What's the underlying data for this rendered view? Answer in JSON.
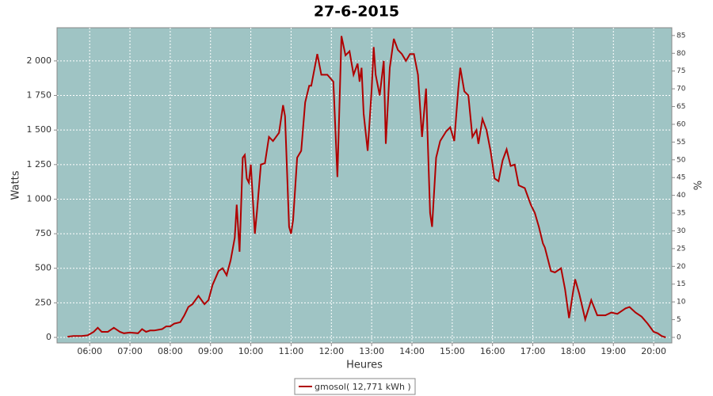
{
  "chart_data": {
    "type": "line",
    "title": "27-6-2015",
    "x_label": "Heures",
    "y_label": "Watts",
    "y2_label": "%",
    "xlim": [
      5.19,
      20.45
    ],
    "ylim": [
      -40,
      2240
    ],
    "y2lim": [
      -1.56,
      87.2
    ],
    "grid": true,
    "legend": "bottom",
    "xticks": [
      {
        "value": 6,
        "label": "06:00"
      },
      {
        "value": 7,
        "label": "07:00"
      },
      {
        "value": 8,
        "label": "08:00"
      },
      {
        "value": 9,
        "label": "09:00"
      },
      {
        "value": 10,
        "label": "10:00"
      },
      {
        "value": 11,
        "label": "11:00"
      },
      {
        "value": 12,
        "label": "12:00"
      },
      {
        "value": 13,
        "label": "13:00"
      },
      {
        "value": 14,
        "label": "14:00"
      },
      {
        "value": 15,
        "label": "15:00"
      },
      {
        "value": 16,
        "label": "16:00"
      },
      {
        "value": 17,
        "label": "17:00"
      },
      {
        "value": 18,
        "label": "18:00"
      },
      {
        "value": 19,
        "label": "19:00"
      },
      {
        "value": 20,
        "label": "20:00"
      }
    ],
    "yticks": [
      0,
      250,
      500,
      750,
      {
        "value": 1000,
        "label": "1 000"
      },
      {
        "value": 1250,
        "label": "1 250"
      },
      {
        "value": 1500,
        "label": "1 500"
      },
      {
        "value": 1750,
        "label": "1 750"
      },
      {
        "value": 2000,
        "label": "2 000"
      }
    ],
    "y2ticks": [
      0,
      5,
      10,
      15,
      20,
      25,
      30,
      35,
      40,
      45,
      50,
      55,
      60,
      65,
      70,
      75,
      80,
      85
    ],
    "x": [
      5.45,
      5.6,
      5.8,
      5.95,
      6.1,
      6.2,
      6.3,
      6.45,
      6.6,
      6.75,
      6.85,
      7.0,
      7.2,
      7.3,
      7.4,
      7.5,
      7.6,
      7.8,
      7.9,
      8.0,
      8.1,
      8.25,
      8.35,
      8.45,
      8.55,
      8.7,
      8.85,
      8.95,
      9.05,
      9.2,
      9.3,
      9.4,
      9.5,
      9.6,
      9.65,
      9.72,
      9.8,
      9.85,
      9.9,
      9.95,
      10.0,
      10.1,
      10.15,
      10.25,
      10.35,
      10.45,
      10.55,
      10.7,
      10.8,
      10.85,
      10.95,
      11.0,
      11.05,
      11.15,
      11.25,
      11.35,
      11.45,
      11.5,
      11.65,
      11.75,
      11.9,
      12.05,
      12.15,
      12.25,
      12.35,
      12.45,
      12.55,
      12.65,
      12.7,
      12.75,
      12.8,
      12.9,
      13.0,
      13.05,
      13.1,
      13.2,
      13.3,
      13.35,
      13.45,
      13.55,
      13.65,
      13.75,
      13.85,
      13.95,
      14.05,
      14.15,
      14.25,
      14.35,
      14.45,
      14.5,
      14.6,
      14.7,
      14.85,
      14.95,
      15.05,
      15.15,
      15.2,
      15.3,
      15.4,
      15.5,
      15.6,
      15.65,
      15.75,
      15.85,
      15.95,
      16.05,
      16.15,
      16.25,
      16.35,
      16.45,
      16.55,
      16.65,
      16.8,
      16.95,
      17.05,
      17.15,
      17.25,
      17.3,
      17.45,
      17.55,
      17.7,
      17.8,
      17.9,
      18.0,
      18.05,
      18.15,
      18.3,
      18.45,
      18.6,
      18.8,
      18.95,
      19.1,
      19.3,
      19.4,
      19.55,
      19.7,
      19.85,
      20.0,
      20.1,
      20.2,
      20.3
    ],
    "series": [
      {
        "name": "gmosol( 12,771 kWh )",
        "color": "#b00000",
        "values": [
          5,
          10,
          10,
          15,
          40,
          70,
          40,
          40,
          70,
          40,
          30,
          35,
          30,
          60,
          40,
          50,
          50,
          60,
          80,
          80,
          100,
          110,
          160,
          220,
          240,
          300,
          240,
          270,
          380,
          480,
          500,
          450,
          560,
          720,
          960,
          620,
          1300,
          1320,
          1150,
          1120,
          1250,
          750,
          900,
          1250,
          1260,
          1450,
          1420,
          1480,
          1680,
          1600,
          800,
          750,
          850,
          1300,
          1350,
          1700,
          1820,
          1820,
          2050,
          1900,
          1900,
          1850,
          1160,
          2180,
          2040,
          2070,
          1900,
          1980,
          1850,
          1950,
          1620,
          1350,
          1800,
          2100,
          1900,
          1750,
          2000,
          1400,
          1950,
          2160,
          2080,
          2050,
          2000,
          2050,
          2050,
          1900,
          1450,
          1800,
          900,
          800,
          1300,
          1420,
          1490,
          1520,
          1420,
          1800,
          1950,
          1780,
          1750,
          1450,
          1500,
          1400,
          1580,
          1500,
          1350,
          1150,
          1130,
          1280,
          1360,
          1240,
          1250,
          1100,
          1080,
          960,
          900,
          800,
          680,
          650,
          480,
          470,
          500,
          350,
          140,
          330,
          420,
          320,
          130,
          270,
          160,
          160,
          180,
          170,
          210,
          220,
          180,
          150,
          100,
          40,
          30,
          10,
          0
        ]
      }
    ]
  }
}
